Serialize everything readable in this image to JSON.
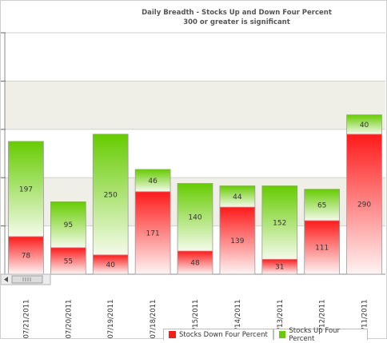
{
  "chart_data": {
    "type": "bar",
    "stacked": true,
    "title": "Daily Breadth - Stocks Up and Down Four Percent",
    "subtitle": "300 or greater is significant",
    "categories": [
      "07/21/2011",
      "07/20/2011",
      "07/19/2011",
      "07/18/2011",
      "07/15/2011",
      "07/14/2011",
      "07/13/2011",
      "07/12/2011",
      "07/11/2011"
    ],
    "series": [
      {
        "name": "Stocks Down Four Percent",
        "values": [
          78,
          55,
          40,
          171,
          48,
          139,
          31,
          111,
          290
        ],
        "color": "#ff1a1a"
      },
      {
        "name": "Stocks Up Four Percent",
        "values": [
          197,
          95,
          250,
          46,
          140,
          44,
          152,
          65,
          40
        ],
        "color": "#66cc00"
      }
    ],
    "ylim": [
      0,
      500
    ],
    "grid": true,
    "legend_position": "bottom"
  }
}
